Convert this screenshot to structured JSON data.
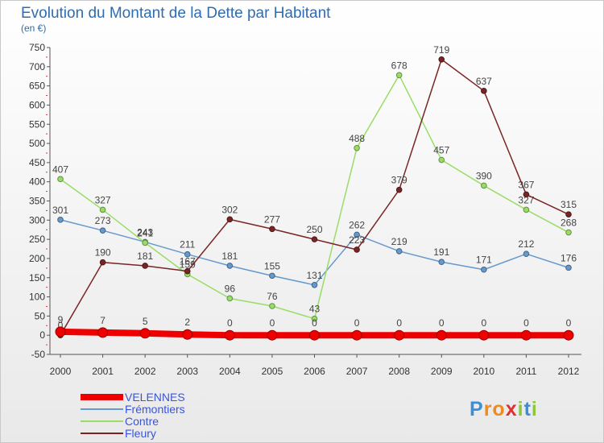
{
  "chart_data": {
    "type": "line",
    "title": "Evolution du Montant de la Dette par Habitant",
    "subtitle": "(en €)",
    "xlabel": "",
    "ylabel": "",
    "x": [
      "2000",
      "2001",
      "2002",
      "2003",
      "2004",
      "2005",
      "2006",
      "2007",
      "2008",
      "2009",
      "2010",
      "2011",
      "2012"
    ],
    "ylim": [
      -50,
      750
    ],
    "yticks": [
      -50,
      0,
      50,
      100,
      150,
      200,
      250,
      300,
      350,
      400,
      450,
      500,
      550,
      600,
      650,
      700,
      750
    ],
    "grid": false,
    "legend_position": "bottom-left",
    "series": [
      {
        "name": "VELENNES",
        "color": "#ee0000",
        "values": [
          9,
          7,
          5,
          2,
          0,
          0,
          0,
          0,
          0,
          0,
          0,
          0,
          0
        ]
      },
      {
        "name": "Frémontiers",
        "color": "#6699cc",
        "values": [
          301,
          273,
          243,
          211,
          181,
          155,
          131,
          262,
          219,
          191,
          171,
          212,
          176
        ]
      },
      {
        "name": "Contre",
        "color": "#99dd66",
        "values": [
          407,
          327,
          241,
          159,
          96,
          76,
          43,
          488,
          678,
          457,
          390,
          327,
          268
        ]
      },
      {
        "name": "Fleury",
        "color": "#7a2525",
        "values": [
          0,
          190,
          181,
          167,
          302,
          277,
          250,
          223,
          379,
          719,
          637,
          367,
          315
        ]
      }
    ]
  },
  "watermark": {
    "text": "Proxiti"
  }
}
